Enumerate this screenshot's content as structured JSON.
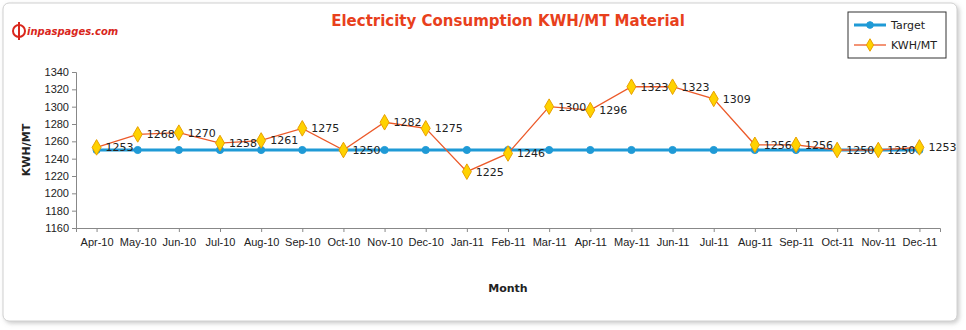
{
  "chart_data": {
    "type": "line",
    "title": "Electricity Consumption KWH/MT Material",
    "annotations": [
      "inpaspages.com"
    ],
    "x_label": "Month",
    "y_label": "KWH/MT",
    "categories": [
      "Apr-10",
      "May-10",
      "Jun-10",
      "Jul-10",
      "Aug-10",
      "Sep-10",
      "Oct-10",
      "Nov-10",
      "Dec-10",
      "Jan-11",
      "Feb-11",
      "Mar-11",
      "Apr-11",
      "May-11",
      "Jun-11",
      "Jul-11",
      "Aug-11",
      "Sep-11",
      "Oct-11",
      "Nov-11",
      "Dec-11"
    ],
    "series": [
      {
        "name": "Target",
        "color": "#1f9ad6",
        "marker": "circle",
        "line_style": "solid",
        "values": [
          1250,
          1250,
          1250,
          1250,
          1250,
          1250,
          1250,
          1250,
          1250,
          1250,
          1250,
          1250,
          1250,
          1250,
          1250,
          1250,
          1250,
          1250,
          1250,
          1250,
          1250
        ]
      },
      {
        "name": "KWH/MT",
        "color": "#ec5a2a",
        "marker": "diamond",
        "line_style": "solid",
        "data_labels": true,
        "values": [
          1253,
          1268,
          1270,
          1258,
          1261,
          1275,
          1250,
          1282,
          1275,
          1225,
          1246,
          1300,
          1296,
          1323,
          1323,
          1309,
          1256,
          1256,
          1250,
          1250,
          1253
        ]
      }
    ],
    "ylim": [
      1160,
      1340
    ],
    "yticks": [
      1160,
      1180,
      1200,
      1220,
      1240,
      1260,
      1280,
      1300,
      1320,
      1340
    ],
    "grid": false,
    "legend": "top-right"
  }
}
